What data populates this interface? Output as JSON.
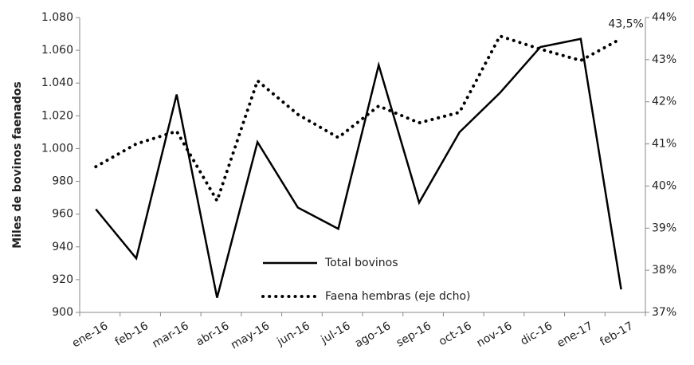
{
  "chart_data": {
    "type": "line",
    "y_label": "Miles de bovinos faenados",
    "categories": [
      "ene-16",
      "feb-16",
      "mar-16",
      "abr-16",
      "may-16",
      "jun-16",
      "jul-16",
      "ago-16",
      "sep-16",
      "oct-16",
      "nov-16",
      "dic-16",
      "ene-17",
      "feb-17"
    ],
    "series": [
      {
        "name": "Total bovinos",
        "color": "#000000",
        "style": "solid",
        "values": [
          963,
          933,
          1033,
          909,
          1004,
          964,
          951,
          1051,
          967,
          1010,
          1034,
          1062,
          1067,
          914
        ]
      },
      {
        "name": "Faena hembras (eje dcho)",
        "color": "#000000",
        "style": "dotted",
        "axis": "y2",
        "values": [
          40.46,
          41.0,
          41.3,
          39.65,
          42.5,
          41.7,
          41.15,
          41.9,
          41.5,
          41.75,
          43.56,
          43.25,
          42.98,
          43.5
        ],
        "value_labels": [
          null,
          null,
          null,
          null,
          null,
          null,
          null,
          null,
          null,
          null,
          null,
          null,
          null,
          "43,5%"
        ]
      }
    ],
    "ylim": [
      900,
      1080
    ],
    "yticks": [
      900,
      920,
      940,
      960,
      980,
      {
        "value": 1000,
        "label": "1.000"
      },
      {
        "value": 1020,
        "label": "1.020"
      },
      {
        "value": 1040,
        "label": "1.040"
      },
      {
        "value": 1060,
        "label": "1.060"
      },
      {
        "value": 1080,
        "label": "1.080"
      }
    ],
    "y2lim": [
      37,
      44
    ],
    "y2ticks": [
      {
        "value": 37,
        "label": "37%"
      },
      {
        "value": 38,
        "label": "38%"
      },
      {
        "value": 39,
        "label": "39%"
      },
      {
        "value": 40,
        "label": "40%"
      },
      {
        "value": 41,
        "label": "41%"
      },
      {
        "value": 42,
        "label": "42%"
      },
      {
        "value": 43,
        "label": "43%"
      },
      {
        "value": 44,
        "label": "44%"
      }
    ],
    "grid": false,
    "legend": "bottom-center"
  }
}
